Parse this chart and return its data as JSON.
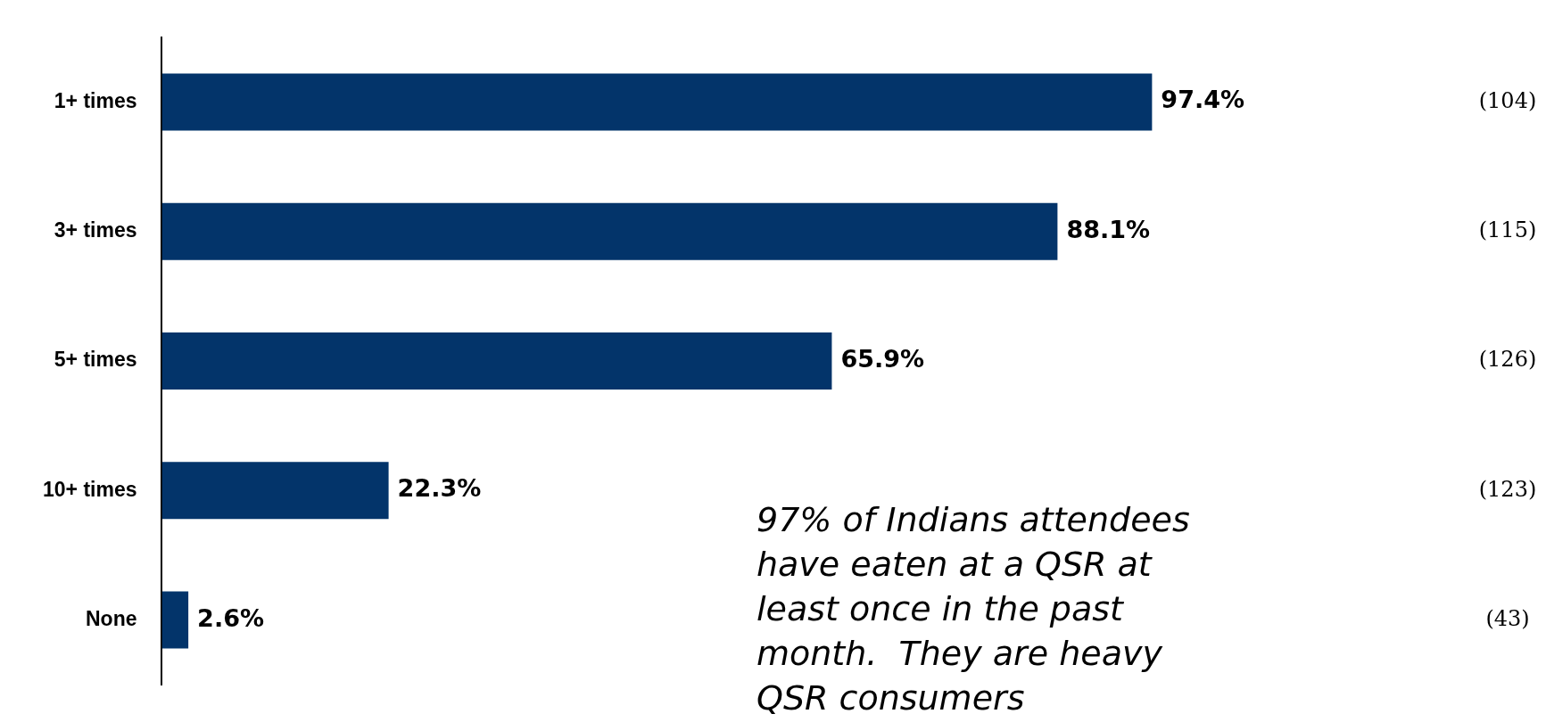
{
  "chart_data": {
    "type": "bar",
    "orientation": "horizontal",
    "categories": [
      "1+ times",
      "3+ times",
      "5+ times",
      "10+ times",
      "None"
    ],
    "values": [
      97.4,
      88.1,
      65.9,
      22.3,
      2.6
    ],
    "value_labels": [
      "97.4%",
      "88.1%",
      "65.9%",
      "22.3%",
      "2.6%"
    ],
    "color": "#03346a",
    "legend": false,
    "tick_labels": "y",
    "annotations": [
      "(104)",
      "(115)",
      "(126)",
      "(123)",
      "(43)",
      "97% of Indians attendees have eaten at a QSR at least once in the past month.  They are heavy QSR consumers"
    ]
  }
}
